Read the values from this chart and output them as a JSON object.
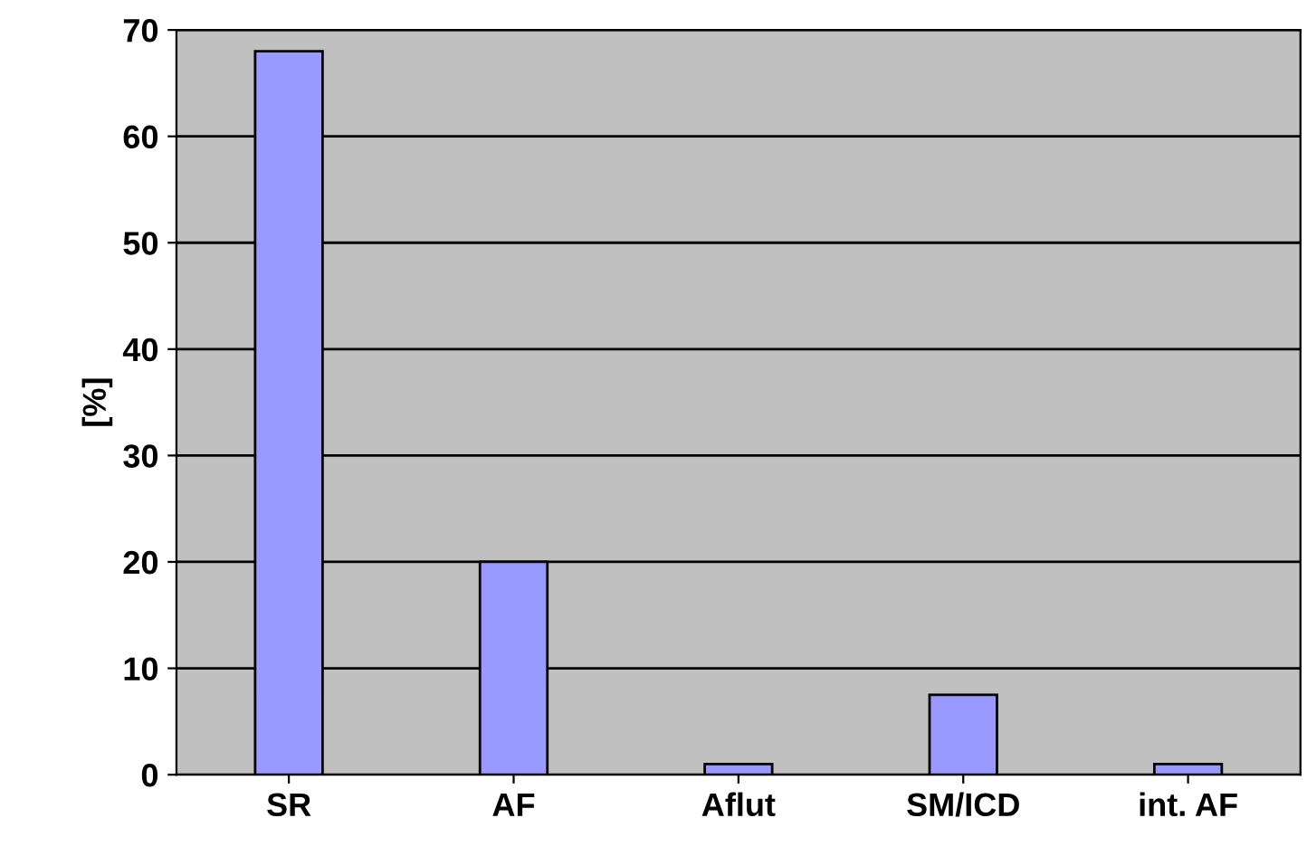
{
  "chart_data": {
    "type": "bar",
    "ylabel": "[%]",
    "categories": [
      "SR",
      "AF",
      "Aflut",
      "SM/ICD",
      "int. AF"
    ],
    "series": [
      {
        "color": "#9999ff",
        "values": [
          68,
          20,
          1,
          7.5,
          1
        ]
      }
    ],
    "ylim": [
      0,
      70
    ],
    "yticks": [
      0,
      10,
      20,
      30,
      40,
      50,
      60,
      70
    ],
    "grid": "y",
    "legend": false
  }
}
